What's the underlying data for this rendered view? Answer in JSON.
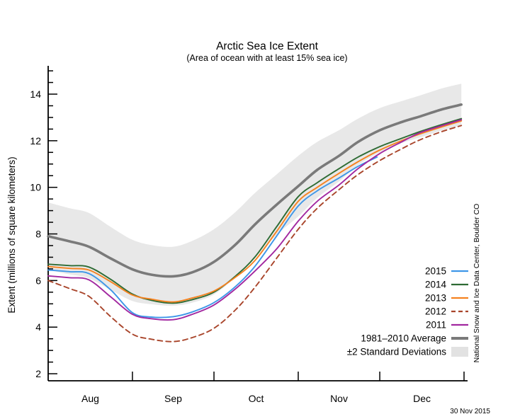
{
  "title": "Arctic Sea Ice Extent",
  "subtitle": "(Area of ocean with at least 15% sea ice)",
  "ylabel": "Extent (millions of square kilometers)",
  "credit": "National Snow and Ice Data Center, Boulder CO",
  "date_stamp": "30 Nov 2015",
  "chart_data": {
    "type": "line",
    "title": "Arctic Sea Ice Extent",
    "subtitle": "(Area of ocean with at least 15% sea ice)",
    "ylabel": "Extent (millions of square kilometers)",
    "x_unit": "days since Aug 1",
    "x_domain_days": [
      0,
      153
    ],
    "ylim": [
      1.7,
      15.2
    ],
    "grid": false,
    "legend_position": "right-inside",
    "y_axis": {
      "major_ticks": [
        2,
        4,
        6,
        8,
        10,
        12,
        14
      ],
      "minor_step": 0.5,
      "minor_from": 2,
      "minor_to": 15
    },
    "x_axis": {
      "month_tick_days": [
        31,
        61,
        92,
        122,
        153
      ],
      "month_labels": [
        {
          "text": "Aug",
          "day": 15.5
        },
        {
          "text": "Sep",
          "day": 46
        },
        {
          "text": "Oct",
          "day": 76.5
        },
        {
          "text": "Nov",
          "day": 107
        },
        {
          "text": "Dec",
          "day": 137.5
        }
      ]
    },
    "x_days": [
      0,
      8,
      15,
      23,
      31,
      38,
      46,
      53,
      61,
      69,
      76,
      84,
      92,
      99,
      107,
      114,
      122,
      130,
      137,
      145,
      152
    ],
    "band": {
      "label": "±2 Standard Deviations",
      "color": "#E8E8E8",
      "label_color": "#B5B5B5",
      "top": [
        9.35,
        9.1,
        8.9,
        8.3,
        7.75,
        7.52,
        7.45,
        7.7,
        8.2,
        8.95,
        9.75,
        10.55,
        11.35,
        11.95,
        12.45,
        12.95,
        13.4,
        13.7,
        13.95,
        14.25,
        14.45
      ],
      "bottom": [
        6.45,
        6.26,
        6.1,
        5.6,
        5.12,
        4.98,
        4.92,
        5.05,
        5.4,
        6.15,
        6.95,
        7.95,
        8.75,
        9.55,
        10.25,
        10.95,
        11.5,
        11.9,
        12.15,
        12.45,
        12.65
      ]
    },
    "average": {
      "label": "1981–2010 Average",
      "color": "#7A7A7A",
      "width": 3.6,
      "values": [
        7.9,
        7.68,
        7.45,
        6.95,
        6.48,
        6.25,
        6.18,
        6.35,
        6.8,
        7.55,
        8.4,
        9.25,
        10.05,
        10.75,
        11.35,
        11.95,
        12.45,
        12.8,
        13.05,
        13.35,
        13.55
      ]
    },
    "series": [
      {
        "label": "2015",
        "color": "#3E96E8",
        "dash": null,
        "x_days": [
          0,
          8,
          15,
          23,
          31,
          38,
          46,
          53,
          61,
          69,
          76,
          84,
          92,
          99,
          107,
          114,
          121
        ],
        "values": [
          6.45,
          6.38,
          6.3,
          5.6,
          4.62,
          4.43,
          4.45,
          4.65,
          5.05,
          5.75,
          6.6,
          7.9,
          9.2,
          9.85,
          10.4,
          10.9,
          11.3
        ]
      },
      {
        "label": "2014",
        "color": "#2E6B34",
        "dash": null,
        "x_days": [
          0,
          8,
          15,
          23,
          31,
          38,
          46,
          53,
          61,
          69,
          76,
          84,
          92,
          99,
          107,
          114,
          122,
          130,
          137,
          145,
          152
        ],
        "values": [
          6.7,
          6.64,
          6.58,
          6.05,
          5.42,
          5.15,
          5.03,
          5.18,
          5.5,
          6.2,
          7.0,
          8.3,
          9.6,
          10.2,
          10.8,
          11.3,
          11.75,
          12.1,
          12.4,
          12.7,
          12.95
        ]
      },
      {
        "label": "2013",
        "color": "#F58220",
        "dash": null,
        "x_days": [
          0,
          8,
          15,
          23,
          31,
          38,
          46,
          53,
          61,
          69,
          76,
          84,
          92,
          99,
          107,
          114,
          122,
          130,
          137,
          145,
          152
        ],
        "values": [
          6.6,
          6.52,
          6.45,
          5.95,
          5.38,
          5.2,
          5.08,
          5.25,
          5.55,
          6.15,
          6.85,
          8.1,
          9.4,
          10.0,
          10.6,
          11.1,
          11.6,
          12.0,
          12.3,
          12.6,
          12.85
        ]
      },
      {
        "label": "2012",
        "color": "#A9452B",
        "dash": "7,5",
        "x_days": [
          0,
          8,
          15,
          23,
          31,
          38,
          46,
          53,
          61,
          69,
          76,
          84,
          92,
          99,
          107,
          114,
          122,
          130,
          137,
          145,
          152
        ],
        "values": [
          6.0,
          5.65,
          5.32,
          4.45,
          3.7,
          3.48,
          3.38,
          3.55,
          3.95,
          4.75,
          5.7,
          6.95,
          8.2,
          9.1,
          9.9,
          10.55,
          11.15,
          11.65,
          12.05,
          12.4,
          12.65
        ]
      },
      {
        "label": "2011",
        "color": "#A228A0",
        "dash": null,
        "x_days": [
          0,
          8,
          15,
          23,
          31,
          38,
          46,
          53,
          61,
          69,
          76,
          84,
          92,
          99,
          107,
          114,
          122,
          130,
          137,
          145,
          152
        ],
        "values": [
          6.2,
          6.12,
          6.03,
          5.3,
          4.55,
          4.36,
          4.32,
          4.55,
          4.95,
          5.65,
          6.4,
          7.35,
          8.55,
          9.4,
          10.1,
          10.8,
          11.45,
          11.95,
          12.35,
          12.65,
          12.9
        ]
      }
    ]
  }
}
